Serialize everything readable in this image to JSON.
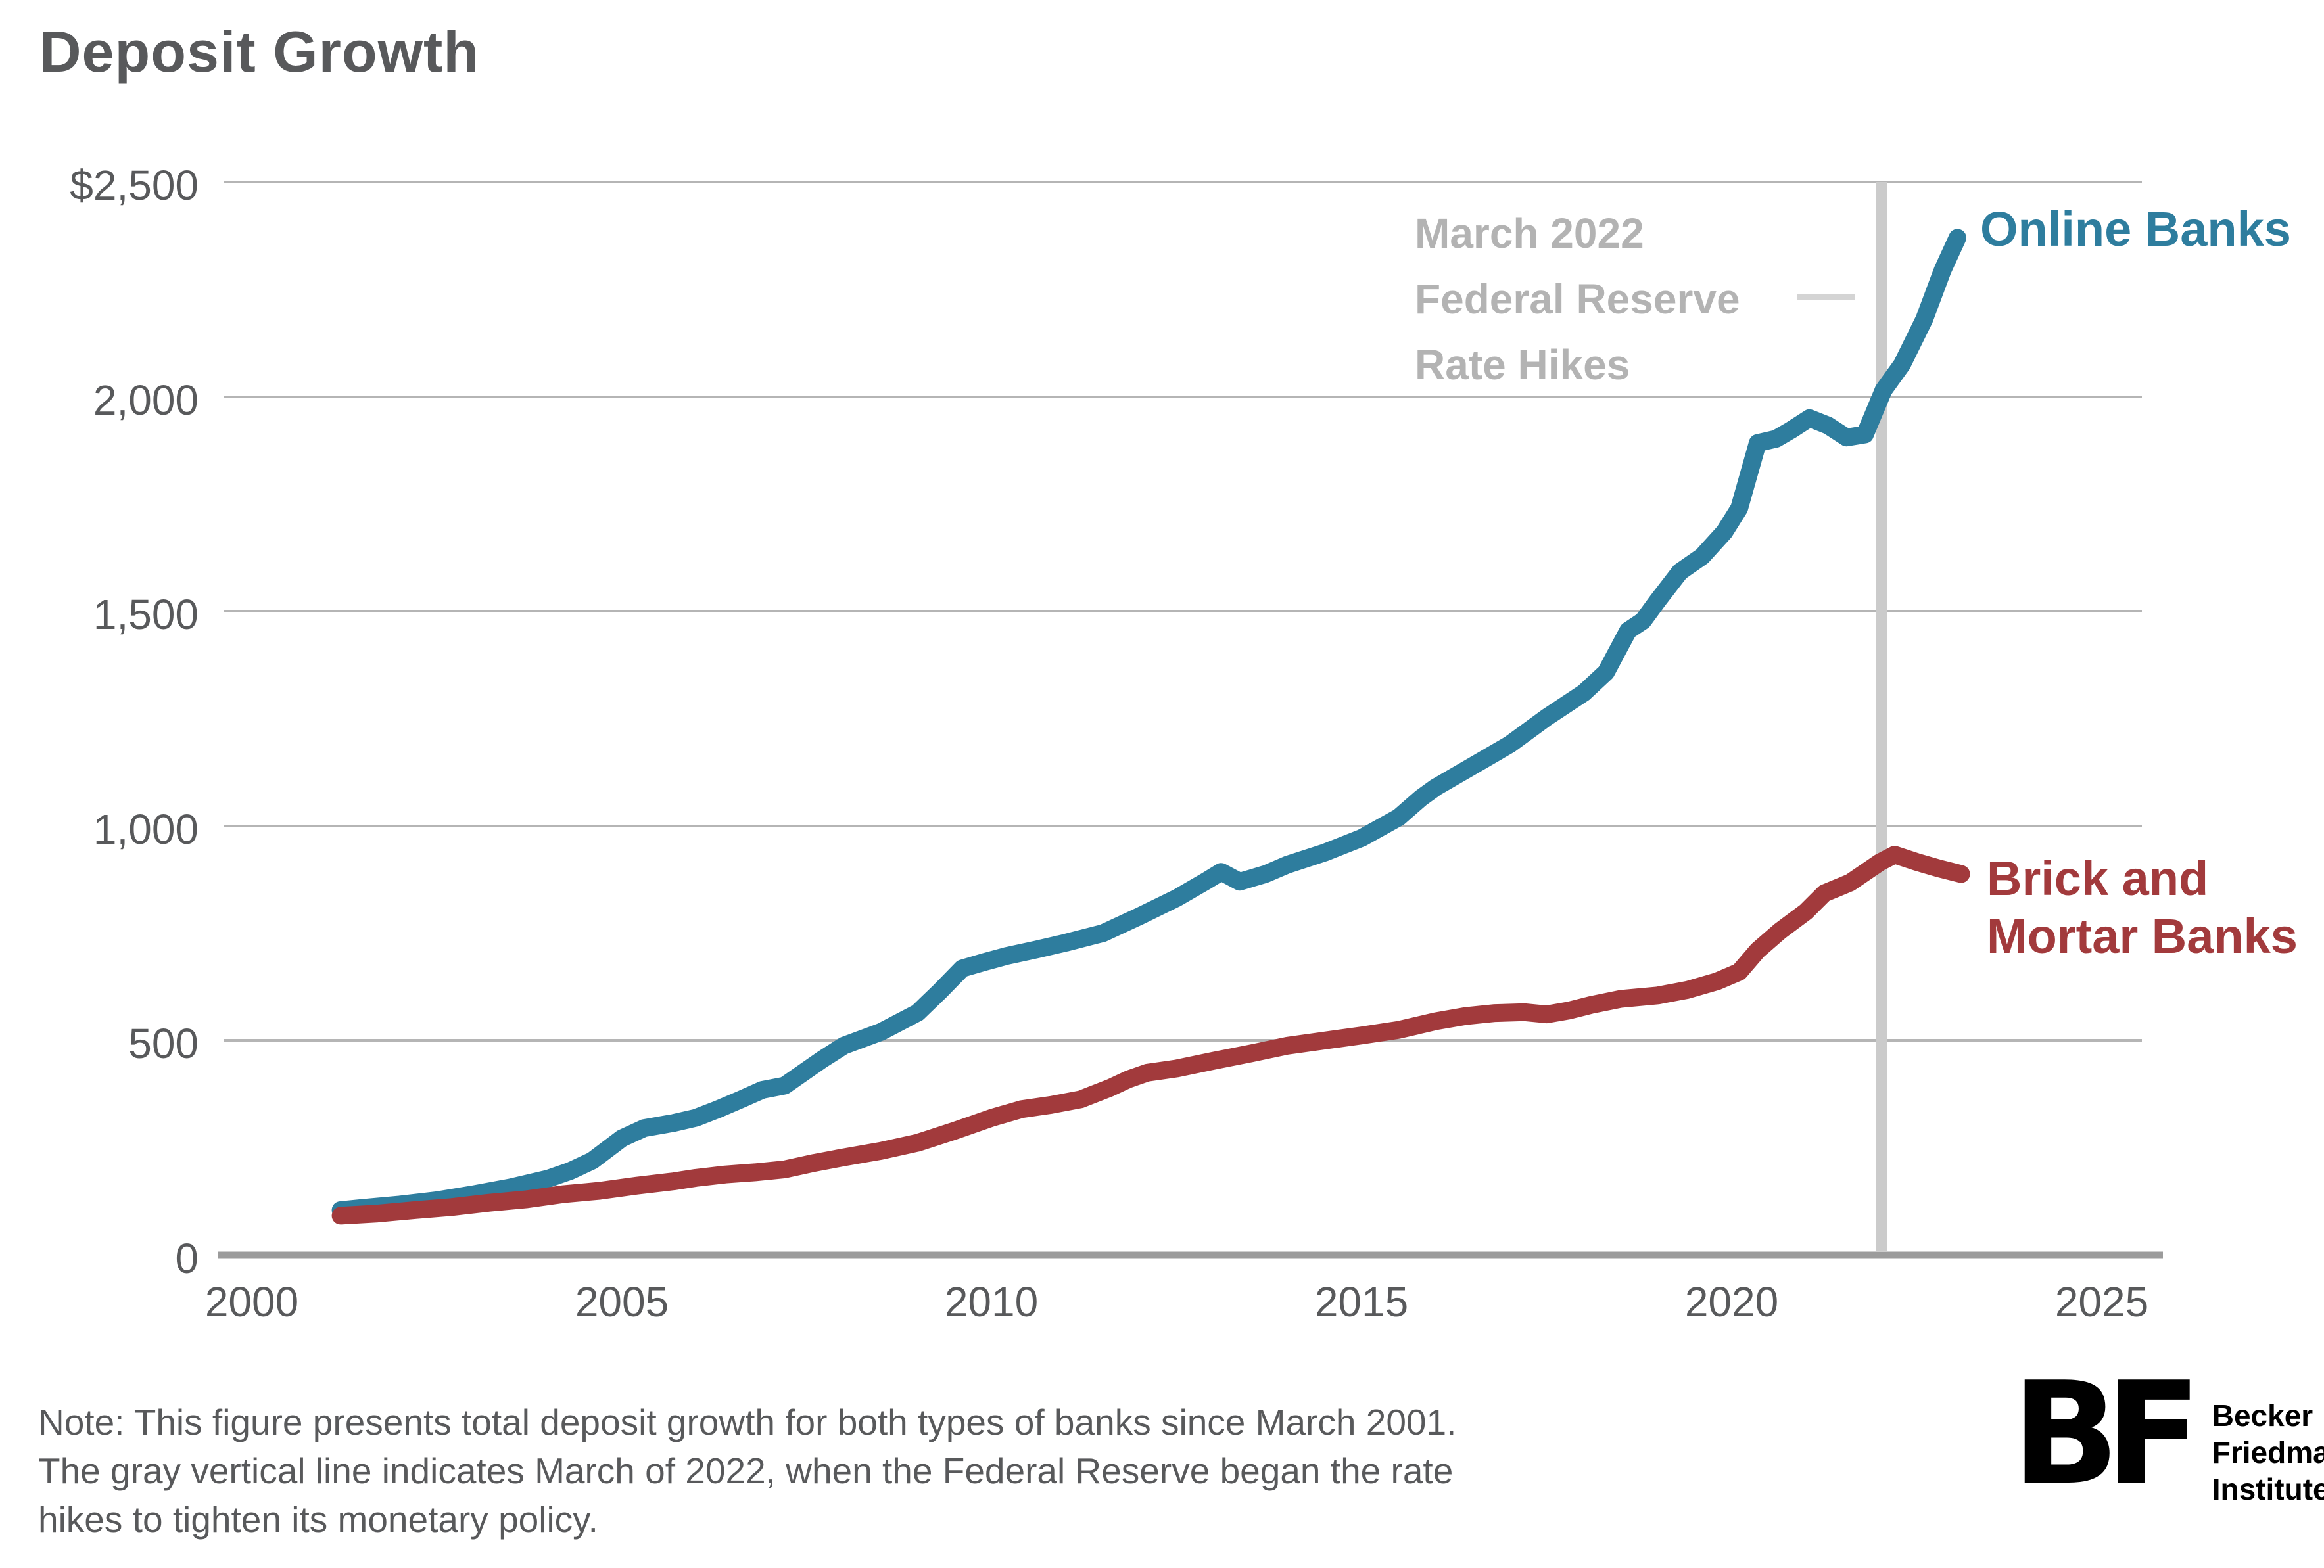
{
  "header": {
    "title": "Deposit Growth"
  },
  "chart": {
    "y_ticks": [
      "$2,500",
      "2,000",
      "1,500",
      "1,000",
      "500",
      "0"
    ],
    "x_ticks": [
      "2000",
      "2005",
      "2010",
      "2015",
      "2020",
      "2025"
    ],
    "annotation": {
      "line1": "March 2022",
      "line2": "Federal Reserve",
      "line3": "Rate Hikes"
    },
    "series_labels": {
      "online": "Online Banks",
      "brick_line1": "Brick and",
      "brick_line2": "Mortar Banks"
    },
    "colors": {
      "online": "#2e7d9e",
      "brick": "#a23a3c",
      "annotation_text": "#b3b3b3",
      "grid": "#b5b5b5",
      "axis": "#9b9b9b",
      "event_line": "#cbcbcb",
      "text": "#58595b"
    }
  },
  "chart_data": {
    "type": "line",
    "title": "Deposit Growth",
    "xlabel": "",
    "ylabel": "",
    "x_range": [
      2000,
      2025
    ],
    "y_range": [
      0,
      2500
    ],
    "x_tick_values": [
      2000,
      2005,
      2010,
      2015,
      2020,
      2025
    ],
    "y_tick_values": [
      0,
      500,
      1000,
      1500,
      2000,
      2500
    ],
    "grid": "horizontal-only",
    "event_line": {
      "x": 2022.2,
      "label": "March 2022 Federal Reserve Rate Hikes"
    },
    "legend_position": "right-of-line-ends",
    "series": [
      {
        "name": "Online Banks",
        "color": "#2e7d9e",
        "points": [
          [
            2001.2,
            105
          ],
          [
            2001.5,
            110
          ],
          [
            2002,
            118
          ],
          [
            2002.5,
            128
          ],
          [
            2003,
            142
          ],
          [
            2003.5,
            158
          ],
          [
            2004,
            178
          ],
          [
            2004.3,
            196
          ],
          [
            2004.6,
            220
          ],
          [
            2005,
            272
          ],
          [
            2005.3,
            296
          ],
          [
            2005.7,
            308
          ],
          [
            2006,
            320
          ],
          [
            2006.3,
            340
          ],
          [
            2006.6,
            362
          ],
          [
            2006.9,
            385
          ],
          [
            2007.2,
            395
          ],
          [
            2007.7,
            455
          ],
          [
            2008,
            488
          ],
          [
            2008.5,
            520
          ],
          [
            2009,
            565
          ],
          [
            2009.3,
            615
          ],
          [
            2009.6,
            668
          ],
          [
            2009.9,
            683
          ],
          [
            2010.2,
            697
          ],
          [
            2010.6,
            712
          ],
          [
            2011,
            728
          ],
          [
            2011.5,
            750
          ],
          [
            2012,
            790
          ],
          [
            2012.5,
            832
          ],
          [
            2012.9,
            872
          ],
          [
            2013.1,
            893
          ],
          [
            2013.35,
            870
          ],
          [
            2013.7,
            888
          ],
          [
            2014,
            910
          ],
          [
            2014.5,
            938
          ],
          [
            2015,
            972
          ],
          [
            2015.5,
            1020
          ],
          [
            2015.8,
            1065
          ],
          [
            2016,
            1090
          ],
          [
            2016.5,
            1140
          ],
          [
            2017,
            1190
          ],
          [
            2017.5,
            1253
          ],
          [
            2018,
            1310
          ],
          [
            2018.3,
            1358
          ],
          [
            2018.6,
            1455
          ],
          [
            2018.8,
            1478
          ],
          [
            2019,
            1525
          ],
          [
            2019.3,
            1592
          ],
          [
            2019.6,
            1628
          ],
          [
            2019.9,
            1685
          ],
          [
            2020.1,
            1740
          ],
          [
            2020.35,
            1892
          ],
          [
            2020.6,
            1902
          ],
          [
            2020.8,
            1922
          ],
          [
            2021.05,
            1950
          ],
          [
            2021.3,
            1933
          ],
          [
            2021.55,
            1905
          ],
          [
            2021.8,
            1912
          ],
          [
            2022.05,
            2015
          ],
          [
            2022.3,
            2075
          ],
          [
            2022.6,
            2180
          ],
          [
            2022.85,
            2295
          ],
          [
            2023.05,
            2370
          ]
        ]
      },
      {
        "name": "Brick and Mortar Banks",
        "color": "#a23a3c",
        "points": [
          [
            2001.2,
            92
          ],
          [
            2001.7,
            97
          ],
          [
            2002.2,
            105
          ],
          [
            2002.7,
            112
          ],
          [
            2003.2,
            122
          ],
          [
            2003.7,
            130
          ],
          [
            2004.2,
            142
          ],
          [
            2004.7,
            150
          ],
          [
            2005.2,
            162
          ],
          [
            2005.7,
            172
          ],
          [
            2006,
            180
          ],
          [
            2006.4,
            188
          ],
          [
            2006.8,
            193
          ],
          [
            2007.2,
            200
          ],
          [
            2007.6,
            215
          ],
          [
            2008,
            228
          ],
          [
            2008.5,
            243
          ],
          [
            2009,
            262
          ],
          [
            2009.5,
            290
          ],
          [
            2010,
            320
          ],
          [
            2010.4,
            340
          ],
          [
            2010.8,
            350
          ],
          [
            2011.2,
            363
          ],
          [
            2011.6,
            390
          ],
          [
            2011.85,
            410
          ],
          [
            2012.1,
            425
          ],
          [
            2012.5,
            435
          ],
          [
            2013,
            453
          ],
          [
            2013.5,
            470
          ],
          [
            2014,
            488
          ],
          [
            2014.5,
            500
          ],
          [
            2015,
            512
          ],
          [
            2015.5,
            525
          ],
          [
            2016,
            545
          ],
          [
            2016.4,
            557
          ],
          [
            2016.8,
            564
          ],
          [
            2017.2,
            566
          ],
          [
            2017.5,
            561
          ],
          [
            2017.8,
            570
          ],
          [
            2018.1,
            583
          ],
          [
            2018.5,
            597
          ],
          [
            2019,
            605
          ],
          [
            2019.4,
            618
          ],
          [
            2019.8,
            638
          ],
          [
            2020.1,
            660
          ],
          [
            2020.35,
            710
          ],
          [
            2020.65,
            755
          ],
          [
            2021,
            800
          ],
          [
            2021.25,
            843
          ],
          [
            2021.6,
            868
          ],
          [
            2022,
            915
          ],
          [
            2022.2,
            933
          ],
          [
            2022.5,
            916
          ],
          [
            2022.8,
            901
          ],
          [
            2023.1,
            888
          ]
        ]
      }
    ]
  },
  "note": {
    "lines": [
      "Note: This figure presents total deposit growth for both types of banks since March 2001.",
      "The gray vertical line indicates March of 2022, when the Federal Reserve began the rate",
      "hikes to tighten its monetary policy."
    ]
  },
  "logo": {
    "mark": "BF",
    "line1": "Becker",
    "line2": "Friedman",
    "line3": "Institute"
  }
}
